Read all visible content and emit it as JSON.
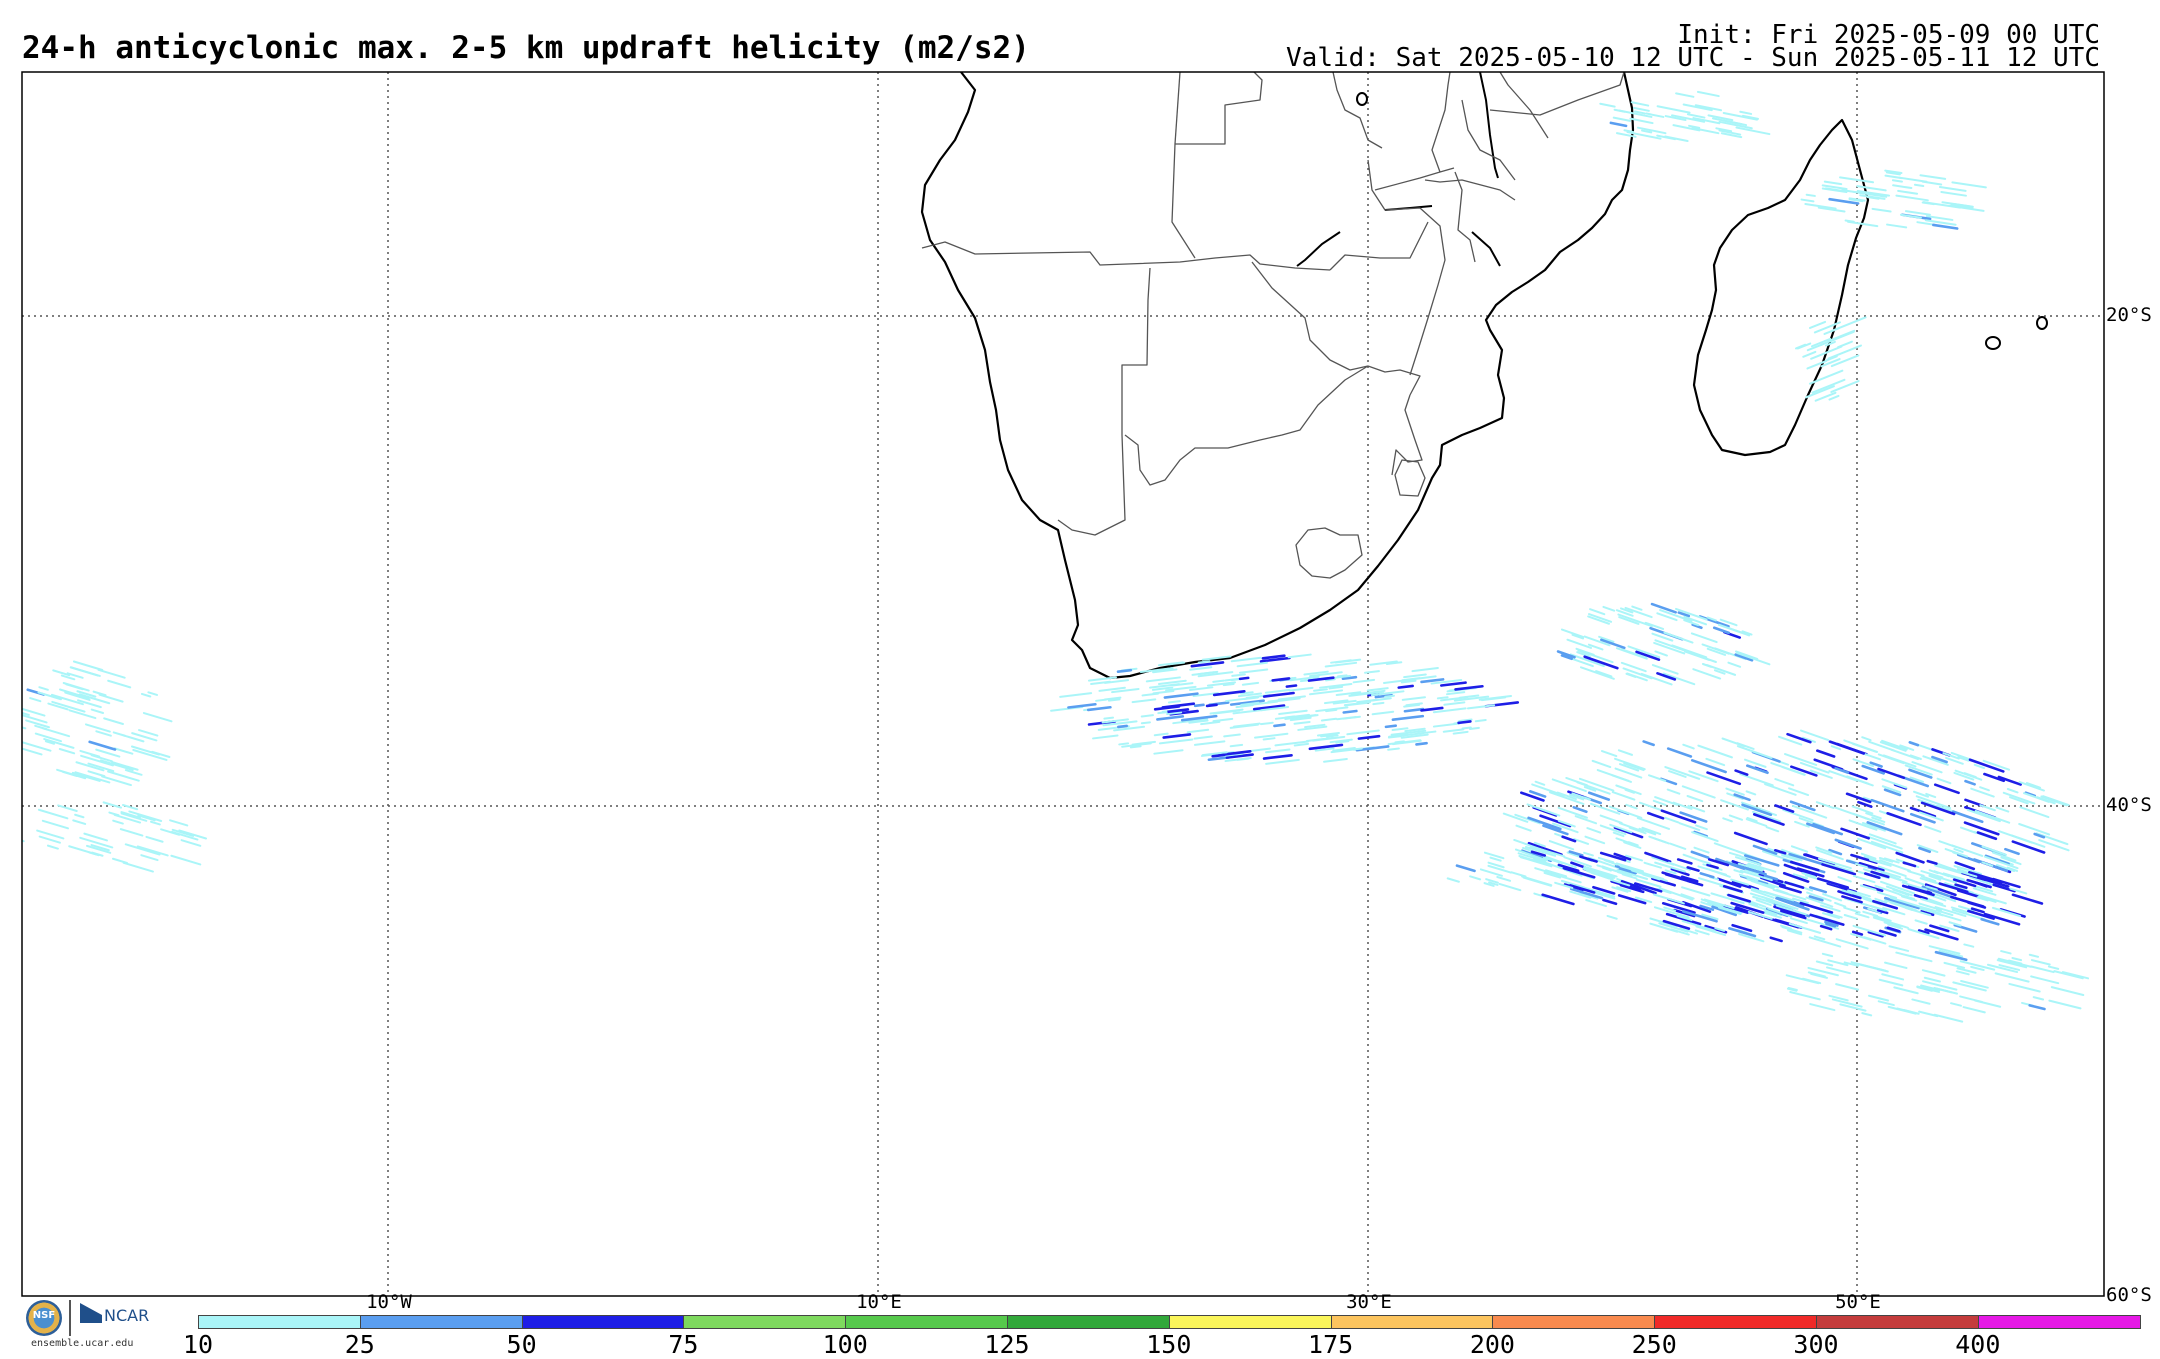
{
  "header": {
    "title": "24-h anticyclonic max. 2-5 km updraft helicity (m2/s2)",
    "init": "Init: Fri 2025-05-09 00 UTC",
    "valid": "Valid: Sat 2025-05-10 12 UTC - Sun 2025-05-11 12 UTC"
  },
  "map": {
    "lat_labels": [
      "20°S",
      "40°S",
      "60°S"
    ],
    "lon_labels": [
      "10°W",
      "10°E",
      "30°E",
      "50°E"
    ],
    "grid_style": "dotted",
    "coastline_color": "#000000",
    "border_color": "#555555"
  },
  "colorbar": {
    "ticks": [
      "10",
      "25",
      "50",
      "75",
      "100",
      "125",
      "150",
      "175",
      "200",
      "250",
      "300",
      "400"
    ],
    "colors": [
      "#aaf5f8",
      "#5a9ef0",
      "#1e1ee6",
      "#7ed95e",
      "#56c94c",
      "#32a83a",
      "#faf55a",
      "#fcc45e",
      "#f98a4e",
      "#f02a28",
      "#c43c3c",
      "#e619e6"
    ]
  },
  "logos": {
    "nsf_label": "NSF",
    "ncar_label": "NCAR",
    "site": "ensemble.ucar.edu"
  }
}
